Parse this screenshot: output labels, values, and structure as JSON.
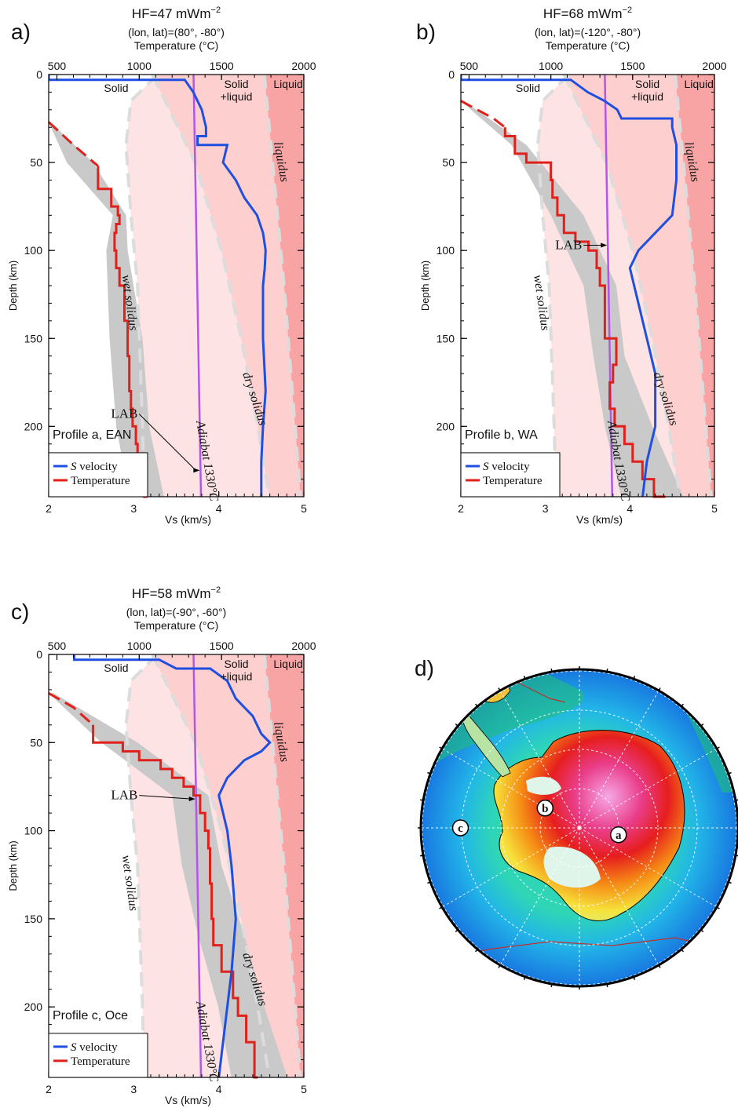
{
  "chart_data": [
    {
      "type": "line",
      "panel_letter": "a)",
      "hf_prefix": "HF=47 mWm",
      "hf_exp": "−2",
      "location": "(lon, lat)=(80°, -80°)",
      "top_axis_label": "Temperature (°C)",
      "top_ticks": [
        "500",
        "1000",
        "1500",
        "2000"
      ],
      "top_range": [
        450,
        2000
      ],
      "xlabel": "Vs (km/s)",
      "x_ticks": [
        "2",
        "3",
        "4",
        "5"
      ],
      "xlim": [
        2,
        5
      ],
      "ylabel": "Depth (km)",
      "y_ticks": [
        "0",
        "50",
        "100",
        "150",
        "200"
      ],
      "ylim": [
        240,
        0
      ],
      "zone_labels": {
        "solid": "Solid",
        "solid_liquid_1": "Solid",
        "solid_liquid_2": "+liquid",
        "liquid": "Liquid"
      },
      "curve_labels": {
        "wet": "wet solidus",
        "dry": "dry solidus",
        "liquidus": "liquidus",
        "adiabat": "Adiabat 1330°C",
        "lab": "LAB"
      },
      "profile_label": "Profile a, EAN",
      "legend": {
        "s_velocity_italic": "S",
        "s_velocity_rest": " velocity",
        "temperature": "Temperature"
      },
      "lab_depth_km": 225,
      "vs_profile": {
        "depth": [
          0,
          3,
          3,
          10,
          20,
          30,
          35,
          35,
          40,
          40,
          50,
          60,
          70,
          80,
          90,
          100,
          110,
          120,
          150,
          180,
          200,
          220,
          240
        ],
        "vs": [
          2.0,
          2.0,
          3.6,
          3.7,
          3.8,
          3.85,
          3.85,
          3.75,
          3.75,
          4.1,
          4.05,
          4.2,
          4.3,
          4.45,
          4.52,
          4.55,
          4.54,
          4.52,
          4.52,
          4.55,
          4.52,
          4.5,
          4.5
        ]
      },
      "temperature_profile": {
        "depth": [
          27,
          40,
          52,
          65,
          75,
          80,
          85,
          90,
          100,
          110,
          120,
          140,
          160,
          180,
          190,
          200,
          210,
          220,
          230,
          240
        ],
        "temp": [
          450,
          600,
          750,
          830,
          870,
          880,
          860,
          850,
          860,
          880,
          910,
          930,
          940,
          950,
          960,
          980,
          990,
          1010,
          1030,
          1050
        ]
      },
      "temperature_uncertainty": {
        "depth": [
          27,
          50,
          80,
          100,
          150,
          200,
          240
        ],
        "low": [
          450,
          560,
          840,
          800,
          820,
          860,
          940
        ],
        "high": [
          460,
          720,
          920,
          930,
          1020,
          1060,
          1150
        ]
      },
      "adiabat": {
        "depth": [
          0,
          240
        ],
        "temp": [
          1330,
          1375
        ]
      },
      "wet_solidus": {
        "depth": [
          0,
          15,
          40,
          80,
          120,
          200,
          240
        ],
        "temp": [
          1110,
          950,
          920,
          950,
          990,
          1020,
          1030
        ]
      },
      "dry_solidus": {
        "depth": [
          0,
          50,
          100,
          150,
          200,
          240
        ],
        "temp": [
          1080,
          1340,
          1500,
          1620,
          1720,
          1790
        ]
      },
      "liquidus": {
        "depth": [
          0,
          60,
          120,
          180,
          240
        ],
        "temp": [
          1760,
          1820,
          1880,
          1930,
          1980
        ]
      }
    },
    {
      "type": "line",
      "panel_letter": "b)",
      "hf_prefix": "HF=68 mWm",
      "hf_exp": "−2",
      "location": "(lon, lat)=(-120°, -80°)",
      "top_axis_label": "Temperature (°C)",
      "top_ticks": [
        "500",
        "1000",
        "1500",
        "2000"
      ],
      "top_range": [
        450,
        2000
      ],
      "xlabel": "Vs (km/s)",
      "x_ticks": [
        "2",
        "3",
        "4",
        "5"
      ],
      "xlim": [
        2,
        5
      ],
      "ylabel": "Depth (km)",
      "y_ticks": [
        "0",
        "50",
        "100",
        "150",
        "200"
      ],
      "ylim": [
        240,
        0
      ],
      "zone_labels": {
        "solid": "Solid",
        "solid_liquid_1": "Solid",
        "solid_liquid_2": "+liquid",
        "liquid": "Liquid"
      },
      "curve_labels": {
        "wet": "wet solidus",
        "dry": "dry solidus",
        "liquidus": "liquidus",
        "adiabat": "Adiabat 1330°C",
        "lab": "LAB"
      },
      "profile_label": "Profile b, WA",
      "legend": {
        "s_velocity_italic": "S",
        "s_velocity_rest": " velocity",
        "temperature": "Temperature"
      },
      "lab_depth_km": 97,
      "vs_profile": {
        "depth": [
          0,
          3,
          3,
          10,
          15,
          20,
          25,
          25,
          30,
          40,
          60,
          80,
          90,
          100,
          110,
          130,
          150,
          170,
          200,
          220,
          240
        ],
        "vs": [
          2.0,
          2.0,
          3.3,
          3.5,
          3.7,
          3.85,
          3.9,
          4.5,
          4.5,
          4.55,
          4.55,
          4.5,
          4.3,
          4.1,
          4.0,
          4.1,
          4.2,
          4.3,
          4.3,
          4.2,
          4.15
        ]
      },
      "temperature_profile": {
        "depth": [
          15,
          25,
          30,
          35,
          45,
          50,
          60,
          70,
          80,
          90,
          95,
          100,
          110,
          120,
          150,
          165,
          175,
          190,
          200,
          210,
          220,
          230,
          240
        ],
        "temp": [
          450,
          650,
          720,
          780,
          850,
          1000,
          1010,
          1040,
          1080,
          1150,
          1230,
          1280,
          1300,
          1330,
          1400,
          1380,
          1360,
          1390,
          1450,
          1500,
          1560,
          1630,
          1700
        ]
      },
      "temperature_uncertainty": {
        "depth": [
          15,
          40,
          80,
          120,
          160,
          200,
          240
        ],
        "low": [
          450,
          760,
          1000,
          1200,
          1260,
          1330,
          1430
        ],
        "high": [
          470,
          850,
          1200,
          1400,
          1450,
          1620,
          1810
        ]
      },
      "adiabat": {
        "depth": [
          0,
          240
        ],
        "temp": [
          1330,
          1375
        ]
      },
      "wet_solidus": {
        "depth": [
          0,
          15,
          40,
          80,
          120,
          200,
          240
        ],
        "temp": [
          1110,
          950,
          920,
          950,
          990,
          1020,
          1030
        ]
      },
      "dry_solidus": {
        "depth": [
          0,
          50,
          100,
          150,
          200,
          240
        ],
        "temp": [
          1080,
          1340,
          1500,
          1620,
          1720,
          1790
        ]
      },
      "liquidus": {
        "depth": [
          0,
          60,
          120,
          180,
          240
        ],
        "temp": [
          1760,
          1820,
          1880,
          1930,
          1980
        ]
      }
    },
    {
      "type": "line",
      "panel_letter": "c)",
      "hf_prefix": "HF=58 mWm",
      "hf_exp": "−2",
      "location": "(lon, lat)=(-90°, -60°)",
      "top_axis_label": "Temperature (°C)",
      "top_ticks": [
        "500",
        "1000",
        "1500",
        "2000"
      ],
      "top_range": [
        450,
        2000
      ],
      "xlabel": "Vs (km/s)",
      "x_ticks": [
        "2",
        "3",
        "4",
        "5"
      ],
      "xlim": [
        2,
        5
      ],
      "ylabel": "Depth (km)",
      "y_ticks": [
        "0",
        "50",
        "100",
        "150",
        "200"
      ],
      "ylim": [
        240,
        0
      ],
      "zone_labels": {
        "solid": "Solid",
        "solid_liquid_1": "Solid",
        "solid_liquid_2": "+liquid",
        "liquid": "Liquid"
      },
      "curve_labels": {
        "wet": "wet solidus",
        "dry": "dry solidus",
        "liquidus": "liquidus",
        "adiabat": "Adiabat 1330°C",
        "lab": "LAB"
      },
      "profile_label": "Profile c, Oce",
      "legend": {
        "s_velocity_italic": "S",
        "s_velocity_rest": " velocity",
        "temperature": "Temperature"
      },
      "lab_depth_km": 82,
      "vs_profile": {
        "depth": [
          0,
          3,
          3,
          8,
          8,
          15,
          25,
          35,
          45,
          50,
          55,
          60,
          70,
          80,
          90,
          100,
          120,
          150,
          180,
          200,
          220,
          240
        ],
        "vs": [
          2.3,
          2.3,
          3.3,
          3.5,
          3.9,
          4.1,
          4.2,
          4.4,
          4.5,
          4.6,
          4.5,
          4.3,
          4.1,
          4.0,
          4.05,
          4.1,
          4.15,
          4.2,
          4.15,
          4.1,
          4.05,
          4.0
        ]
      },
      "temperature_profile": {
        "depth": [
          22,
          30,
          40,
          50,
          55,
          60,
          65,
          70,
          75,
          80,
          90,
          100,
          110,
          130,
          150,
          165,
          180,
          195,
          205,
          220,
          240
        ],
        "temp": [
          450,
          600,
          720,
          900,
          1000,
          1130,
          1200,
          1270,
          1330,
          1370,
          1400,
          1420,
          1430,
          1440,
          1450,
          1500,
          1570,
          1600,
          1650,
          1700,
          1720
        ]
      },
      "temperature_uncertainty": {
        "depth": [
          22,
          50,
          80,
          120,
          160,
          200,
          240
        ],
        "low": [
          450,
          770,
          1200,
          1260,
          1360,
          1480,
          1560
        ],
        "high": [
          480,
          990,
          1420,
          1500,
          1640,
          1760,
          1900
        ]
      },
      "adiabat": {
        "depth": [
          0,
          240
        ],
        "temp": [
          1330,
          1375
        ]
      },
      "wet_solidus": {
        "depth": [
          0,
          15,
          40,
          80,
          120,
          200,
          240
        ],
        "temp": [
          1110,
          950,
          920,
          950,
          990,
          1020,
          1030
        ]
      },
      "dry_solidus": {
        "depth": [
          0,
          50,
          100,
          150,
          200,
          240
        ],
        "temp": [
          1080,
          1340,
          1500,
          1620,
          1720,
          1790
        ]
      },
      "liquidus": {
        "depth": [
          0,
          60,
          120,
          180,
          240
        ],
        "temp": [
          1760,
          1820,
          1880,
          1930,
          1980
        ]
      }
    }
  ],
  "map": {
    "panel_letter": "d)",
    "markers": [
      {
        "label": "a",
        "lon": 80,
        "lat": -80
      },
      {
        "label": "b",
        "lon": -120,
        "lat": -80
      },
      {
        "label": "c",
        "lon": -90,
        "lat": -60
      }
    ]
  },
  "colors": {
    "vs_line": "#1f4fe0",
    "temperature_line": "#e0201a",
    "uncertainty_band": "#c9c9c9",
    "adiabat": "#b455e8",
    "solidus_dash": "#dcdcdc",
    "zone_solid": "#fde3e3",
    "zone_partial": "#fdcfcf",
    "zone_liquid": "#f9a4a4"
  }
}
